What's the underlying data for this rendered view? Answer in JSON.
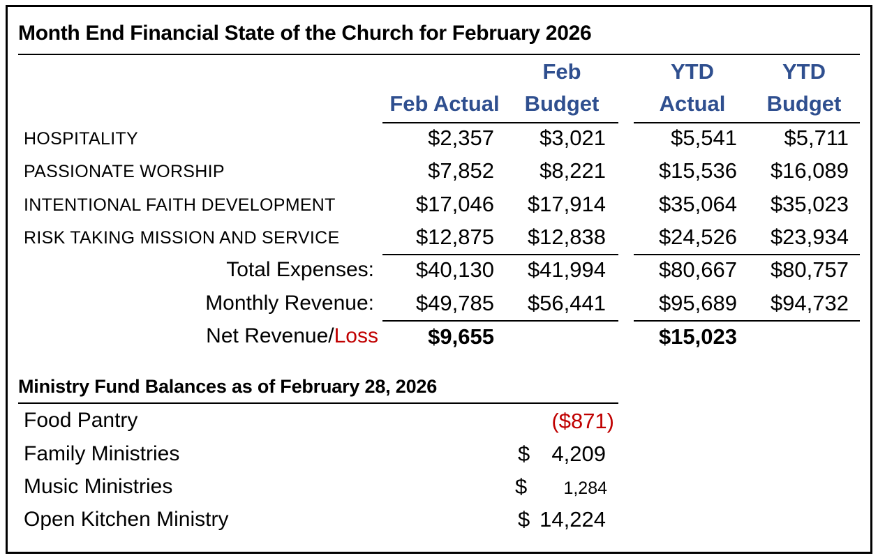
{
  "title": "Month End Financial State of the Church for February 2026",
  "headers": {
    "feb_actual": "Feb Actual",
    "feb_budget_line1": "Feb",
    "feb_budget_line2": "Budget",
    "ytd_actual_line1": "YTD",
    "ytd_actual_line2": "Actual",
    "ytd_budget_line1": "YTD",
    "ytd_budget_line2": "Budget"
  },
  "rows": [
    {
      "label": "HOSPITALITY",
      "feb_actual": "$2,357",
      "feb_budget": "$3,021",
      "ytd_actual": "$5,541",
      "ytd_budget": "$5,711"
    },
    {
      "label": "PASSIONATE WORSHIP",
      "feb_actual": "$7,852",
      "feb_budget": "$8,221",
      "ytd_actual": "$15,536",
      "ytd_budget": "$16,089"
    },
    {
      "label": "INTENTIONAL FAITH DEVELOPMENT",
      "feb_actual": "$17,046",
      "feb_budget": "$17,914",
      "ytd_actual": "$35,064",
      "ytd_budget": "$35,023"
    },
    {
      "label": "RISK TAKING MISSION AND SERVICE",
      "feb_actual": "$12,875",
      "feb_budget": "$12,838",
      "ytd_actual": "$24,526",
      "ytd_budget": "$23,934"
    }
  ],
  "totals": {
    "expenses": {
      "label": "Total Expenses:",
      "feb_actual": "$40,130",
      "feb_budget": "$41,994",
      "ytd_actual": "$80,667",
      "ytd_budget": "$80,757"
    },
    "revenue": {
      "label": "Monthly Revenue:",
      "feb_actual": "$49,785",
      "feb_budget": "$56,441",
      "ytd_actual": "$95,689",
      "ytd_budget": "$94,732"
    },
    "net": {
      "label_main": "Net Revenue/",
      "label_loss": "Loss",
      "feb_actual": "$9,655",
      "ytd_actual": "$15,023"
    }
  },
  "funds": {
    "title": "Ministry Fund Balances as of February 28, 2026",
    "items": [
      {
        "label": "Food Pantry",
        "currency": "",
        "amount": "($871)"
      },
      {
        "label": "Family Ministries",
        "currency": "$",
        "amount": "4,209"
      },
      {
        "label": "Music Ministries",
        "currency": "$",
        "amount": "1,284"
      },
      {
        "label": "Open Kitchen Ministry",
        "currency": "$",
        "amount": "14,224"
      }
    ]
  },
  "colors": {
    "header_blue": "#2f4f8f",
    "loss_red": "#c00000"
  }
}
